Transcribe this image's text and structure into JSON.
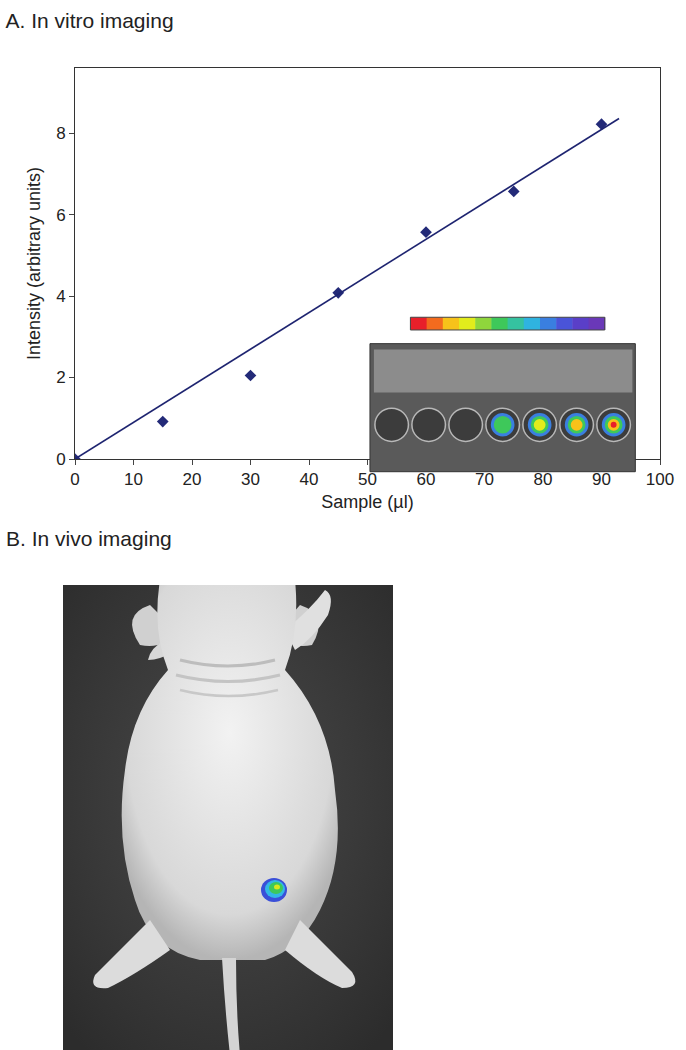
{
  "chart_data": {
    "type": "scatter",
    "title": "A. In vitro imaging",
    "x_label": "Sample (µl)",
    "y_label": "Intensity (arbitrary units)",
    "series": [
      {
        "type": "scatter",
        "marker": "diamond",
        "color": "#232a78",
        "x": [
          0,
          15,
          30,
          45,
          60,
          75,
          90
        ],
        "values": [
          0,
          0.92,
          2.05,
          4.08,
          5.57,
          6.57,
          8.22
        ]
      },
      {
        "type": "line",
        "line_style": "solid",
        "color": "#1e2470",
        "x": [
          0,
          93
        ],
        "values": [
          0,
          8.36
        ]
      }
    ],
    "xlim": [
      0,
      100
    ],
    "xticks": [
      0,
      10,
      20,
      30,
      40,
      50,
      60,
      70,
      80,
      90,
      100
    ],
    "ylim": [
      0,
      9.6
    ],
    "yticks": [
      0,
      2,
      4,
      6,
      8
    ],
    "grid": false
  },
  "panel_b": {
    "title": "B. In vivo imaging"
  }
}
